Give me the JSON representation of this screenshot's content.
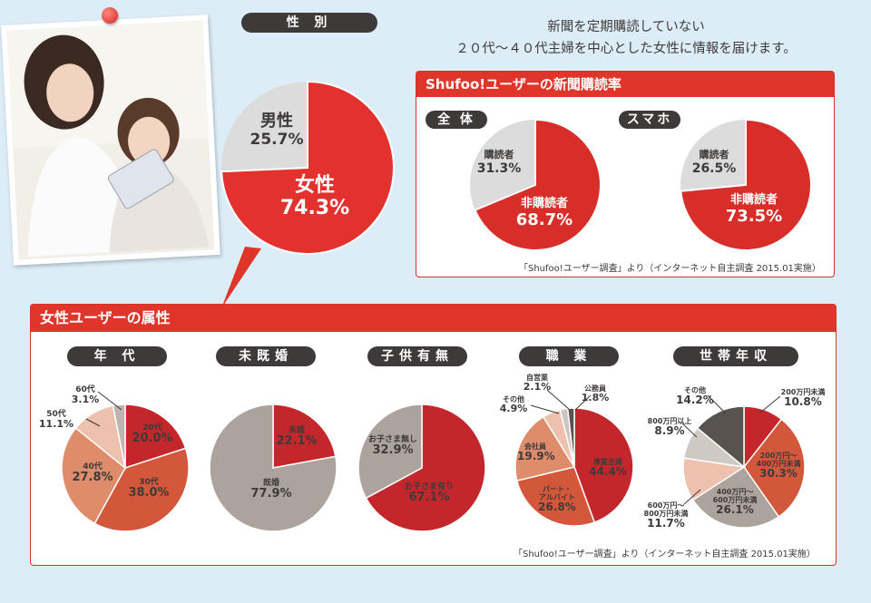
{
  "header": {
    "line1": "新聞を定期購読していない",
    "line2": "２０代～４０代主婦を中心とした女性に情報を届けます。"
  },
  "gender": {
    "title": "性 別",
    "male_label": "男性",
    "male_value": "25.7%",
    "female_label": "女性",
    "female_value": "74.3%"
  },
  "subscription": {
    "title": "Shufoo!ユーザーの新聞購読率",
    "all_title": "全 体",
    "all_reader_label": "購読者",
    "all_reader_value": "31.3%",
    "all_non_label": "非購読者",
    "all_non_value": "68.7%",
    "sp_title": "スマホ",
    "sp_reader_label": "購読者",
    "sp_reader_value": "26.5%",
    "sp_non_label": "非購読者",
    "sp_non_value": "73.5%",
    "note": "「Shufoo!ユーザー調査」より（インターネット自主調査 2015.01実施）"
  },
  "attributes": {
    "title": "女性ユーザーの属性",
    "note": "「Shufoo!ユーザー調査」より（インターネット自主調査 2015.01実施）",
    "age": {
      "title": "年 代",
      "l60": "60代",
      "v60": "3.1%",
      "l50": "50代",
      "v50": "11.1%",
      "l40": "40代",
      "v40": "27.8%",
      "l30": "30代",
      "v30": "38.0%",
      "l20": "20代",
      "v20": "20.0%"
    },
    "marital": {
      "title": "未既婚",
      "single_label": "未婚",
      "single_value": "22.1%",
      "married_label": "既婚",
      "married_value": "77.9%"
    },
    "children": {
      "title": "子供有無",
      "no_label": "お子さま無し",
      "no_value": "32.9%",
      "yes_label": "お子さま有り",
      "yes_value": "67.1%"
    },
    "job": {
      "title": "職 業",
      "self_label": "自営業",
      "self_value": "2.1%",
      "civil_label": "公務員",
      "civil_value": "1.8%",
      "other_label": "その他",
      "other_value": "4.9%",
      "office_label": "会社員",
      "office_value": "19.9%",
      "part_label1": "パート・",
      "part_label2": "アルバイト",
      "part_value": "26.8%",
      "house_label": "専業主婦",
      "house_value": "44.4%"
    },
    "income": {
      "title": "世帯年収",
      "other_label": "その他",
      "other_value": "14.2%",
      "u200_label": "200万円未満",
      "u200_value": "10.8%",
      "b200_label1": "200万円～",
      "b200_label2": "400万円未満",
      "b200_value": "30.3%",
      "b400_label1": "400万円～",
      "b400_label2": "600万円未満",
      "b400_value": "26.1%",
      "b600_label1": "600万円～",
      "b600_label2": "800万円未満",
      "b600_value": "11.7%",
      "o800_label": "800万円以上",
      "o800_value": "8.9%"
    }
  },
  "chart_data": [
    {
      "type": "pie",
      "title": "性 別",
      "categories": [
        "女性",
        "男性"
      ],
      "values": [
        74.3,
        25.7
      ],
      "colors": [
        "#e3312d",
        "#dcdcdc"
      ]
    },
    {
      "type": "pie",
      "title": "全 体",
      "categories": [
        "非購読者",
        "購読者"
      ],
      "values": [
        68.7,
        31.3
      ],
      "colors": [
        "#d72e2a",
        "#dcdcdc"
      ]
    },
    {
      "type": "pie",
      "title": "スマホ",
      "categories": [
        "非購読者",
        "購読者"
      ],
      "values": [
        73.5,
        26.5
      ],
      "colors": [
        "#d72e2a",
        "#dcdcdc"
      ]
    },
    {
      "type": "pie",
      "title": "年 代",
      "categories": [
        "20代",
        "30代",
        "40代",
        "50代",
        "60代"
      ],
      "values": [
        20.0,
        38.0,
        27.8,
        11.1,
        3.1
      ],
      "colors": [
        "#c4272b",
        "#d2573b",
        "#de8c6a",
        "#edc1ad",
        "#bdb6b0"
      ]
    },
    {
      "type": "pie",
      "title": "未既婚",
      "categories": [
        "未婚",
        "既婚"
      ],
      "values": [
        22.1,
        77.9
      ],
      "colors": [
        "#c4272b",
        "#aba39c"
      ]
    },
    {
      "type": "pie",
      "title": "子供有無",
      "categories": [
        "お子さま有り",
        "お子さま無し"
      ],
      "values": [
        67.1,
        32.9
      ],
      "colors": [
        "#c4272b",
        "#aba39c"
      ]
    },
    {
      "type": "pie",
      "title": "職 業",
      "categories": [
        "専業主婦",
        "パート・アルバイト",
        "会社員",
        "その他",
        "自営業",
        "公務員"
      ],
      "values": [
        44.4,
        26.8,
        19.9,
        4.9,
        2.1,
        1.8
      ],
      "colors": [
        "#c4272b",
        "#d2573b",
        "#de8c6a",
        "#edc1ad",
        "#ccc5c0",
        "#58534f"
      ]
    },
    {
      "type": "pie",
      "title": "世帯年収",
      "categories": [
        "200万円未満",
        "200万円～400万円未満",
        "400万円～600万円未満",
        "600万円～800万円未満",
        "800万円以上",
        "その他"
      ],
      "values": [
        10.8,
        30.3,
        26.1,
        11.7,
        8.9,
        14.2
      ],
      "colors": [
        "#c4272b",
        "#d2573b",
        "#aba39c",
        "#edc1ad",
        "#cfc9c4",
        "#58534f"
      ]
    }
  ]
}
